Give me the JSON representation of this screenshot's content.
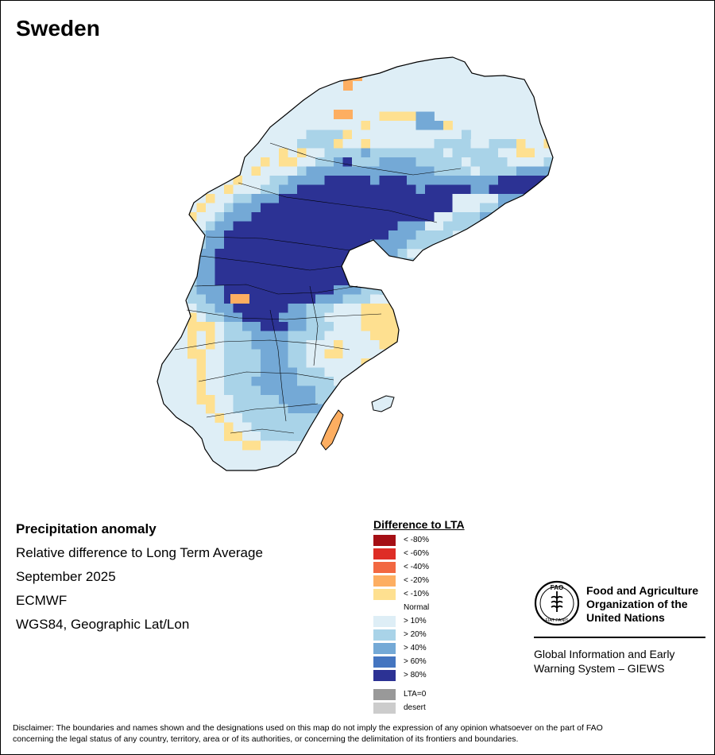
{
  "title": "Sweden",
  "info": {
    "heading": "Precipitation anomaly",
    "subtitle": "Relative difference to Long Term Average",
    "period": "September 2025",
    "source": "ECMWF",
    "projection": "WGS84, Geographic Lat/Lon"
  },
  "legend": {
    "title": "Difference to LTA",
    "classes": [
      {
        "label": "< -80%",
        "color": "#a50f15"
      },
      {
        "label": "< -60%",
        "color": "#de2d26"
      },
      {
        "label": "< -40%",
        "color": "#f26841"
      },
      {
        "label": "< -20%",
        "color": "#fdae61"
      },
      {
        "label": "< -10%",
        "color": "#fee090"
      },
      {
        "label": "Normal",
        "color": "#ffffff"
      },
      {
        "label": "> 10%",
        "color": "#deeef6"
      },
      {
        "label": "> 20%",
        "color": "#a9d3e8"
      },
      {
        "label": "> 40%",
        "color": "#74a9d6"
      },
      {
        "label": "> 60%",
        "color": "#4475c0"
      },
      {
        "label": "> 80%",
        "color": "#2c3294"
      }
    ],
    "extra": [
      {
        "label": "LTA=0",
        "color": "#999999"
      },
      {
        "label": "desert",
        "color": "#cccccc"
      }
    ]
  },
  "fao": {
    "line1": "Food and Agriculture",
    "line2": "Organization of the",
    "line3": "United Nations",
    "logo_text": "FAO",
    "motto": "FIAT PANIS",
    "giews_line1": "Global Information and Early",
    "giews_line2": "Warning System – GIEWS"
  },
  "disclaimer_line1": "Disclaimer: The boundaries and names shown and the designations used on this map do not imply the expression of any opinion whatsoever on the part of FAO",
  "disclaimer_line2": "concerning the legal status of any country, territory, area or of its authorities, or concerning the delimitation of its frontiers and boundaries.",
  "map": {
    "country": "Sweden",
    "anomaly_pattern": [
      "..................................................",
      "..................................................",
      "..................................................",
      "..................................................",
      "..................................................",
      "..................................................",
      "..................................................",
      ".........................nnnn33...................",
      ".......................n11111333n.................",
      ".................2222n1111111111112..........n....",
      "................2222n11n1111111222211222n11nn.....",
      "..............n1n11222232222222212222211nn1111....",
      "............n1nn112234222333322222122221111222....",
      "...........n11112333333333333332222122223333334...",
      ".........n111223333444443444333333333344444444....",
      "........n1112233444444444444434444433444444.......",
      "......n112233344444444444444444441111133344.......",
      ".....n11233344444444444444444444411122334.........",
      "....n1123334444444444444444444411222334...........",
      "...n11233444444444444444444333112222..............",
      "..n122334444444444444444443332222.................",
      "..n12233444444444444444433332222..................",
      "..n2233444444444444444333332.......................",
      "..n223344444444444444443332222....................",
      "..n12334444444444444443332222.....................",
      "..n1233444444444444444333222......................",
      "..n12333444444444444333222........................",
      "..n1223344444444443332221.........................",
      "...n1223344444433222111nnnn.......................",
      "....n122334444333221111nnnn.......................",
      "....nnn1223344433222111nnnnnn.....................",
      "....n1n12223333222211111nnnnn.....................",
      "....n1n1222333322111n1111nnn......................",
      "....nn1122223332211nn111112...........n...........",
      ".....n11222233322111111nn112..........nn..........",
      ".....n112222333322211111112...........nn..........",
      ".....n1122233333222211111.........................",
      ".....n1122223333332222222.........................",
      ".....nn11222223333222222..........................",
      "......n112222223333222............................",
      ".......n1122222222222.............................",
      "........n11222222222..............................",
      "........nn11222222................................",
      "..........nn111..................................."
    ]
  }
}
